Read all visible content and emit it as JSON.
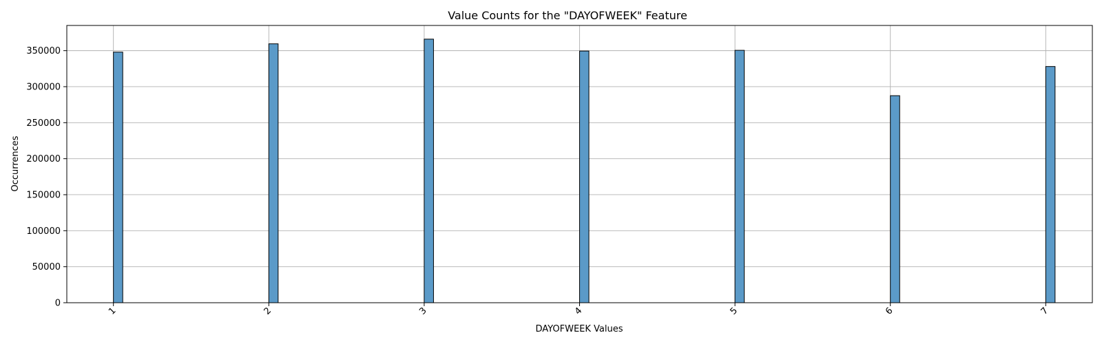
{
  "chart_data": {
    "type": "bar",
    "title": "Value Counts for the \"DAYOFWEEK\" Feature",
    "xlabel": "DAYOFWEEK Values",
    "ylabel": "Occurrences",
    "categories": [
      "1",
      "2",
      "3",
      "4",
      "5",
      "6",
      "7"
    ],
    "x": [
      1,
      2,
      3,
      4,
      5,
      6,
      7
    ],
    "values": [
      348000,
      359500,
      366000,
      349500,
      350500,
      287500,
      328000
    ],
    "xlim": [
      0.7,
      7.3
    ],
    "ylim": [
      0,
      385000
    ],
    "yticks": [
      0,
      50000,
      100000,
      150000,
      200000,
      250000,
      300000,
      350000
    ],
    "ytick_labels": [
      "0",
      "50000",
      "100000",
      "150000",
      "200000",
      "250000",
      "300000",
      "350000"
    ],
    "grid": true,
    "x_tick_rotation": "45 degrees",
    "bar_color": "#5b9ac8",
    "bar_edge_color": "#000000",
    "grid_color": "#b0b0b0"
  }
}
